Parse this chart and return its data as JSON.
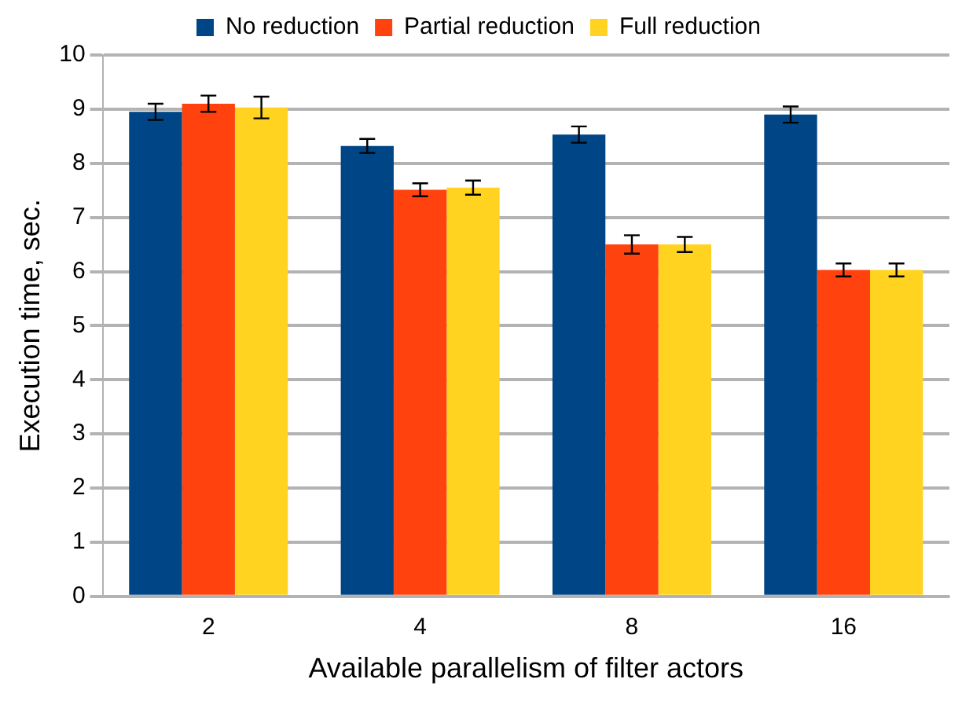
{
  "chart_data": {
    "type": "bar",
    "xlabel": "Available parallelism of filter actors",
    "ylabel": "Execution time, sec.",
    "categories": [
      "2",
      "4",
      "8",
      "16"
    ],
    "series": [
      {
        "name": "No reduction",
        "color": "#004586",
        "values": [
          8.95,
          8.32,
          8.53,
          8.9
        ],
        "errors": [
          0.15,
          0.13,
          0.15,
          0.15
        ]
      },
      {
        "name": "Partial reduction",
        "color": "#ff420e",
        "values": [
          9.1,
          7.51,
          6.5,
          6.03
        ],
        "errors": [
          0.15,
          0.12,
          0.17,
          0.12
        ]
      },
      {
        "name": "Full reduction",
        "color": "#ffd320",
        "values": [
          9.03,
          7.55,
          6.5,
          6.03
        ],
        "errors": [
          0.2,
          0.13,
          0.14,
          0.12
        ]
      }
    ],
    "ylim": [
      0,
      10
    ],
    "yticks": [
      0,
      1,
      2,
      3,
      4,
      5,
      6,
      7,
      8,
      9,
      10
    ],
    "grid": "y",
    "legend": "top"
  }
}
